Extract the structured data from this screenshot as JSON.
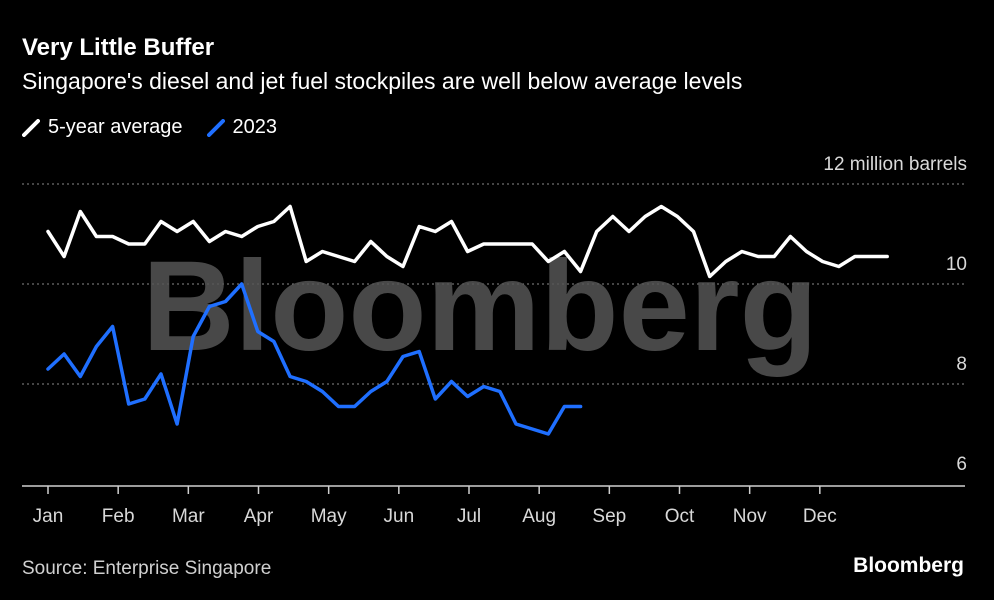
{
  "header": {
    "title": "Very Little Buffer",
    "subtitle": "Singapore's diesel and jet fuel stockpiles are well below average levels"
  },
  "legend": {
    "items": [
      {
        "label": "5-year average",
        "color": "#ffffff"
      },
      {
        "label": "2023",
        "color": "#1f6fff"
      }
    ]
  },
  "footer": {
    "source": "Source: Enterprise Singapore",
    "brand": "Bloomberg"
  },
  "watermark": "Bloomberg",
  "chart_data": {
    "type": "line",
    "y_unit_label": "12 million barrels",
    "ylim": [
      5.6,
      12
    ],
    "yticks": [
      {
        "value": 12,
        "label": "12"
      },
      {
        "value": 10,
        "label": "10"
      },
      {
        "value": 8,
        "label": "8"
      },
      {
        "value": 6,
        "label": "6"
      }
    ],
    "xlim": [
      0,
      12.2
    ],
    "xticks": [
      "Jan",
      "Feb",
      "Mar",
      "Apr",
      "May",
      "Jun",
      "Jul",
      "Aug",
      "Sep",
      "Oct",
      "Nov",
      "Dec"
    ],
    "grid": true,
    "series": [
      {
        "name": "5-year average",
        "color": "#ffffff",
        "x": [
          0.0,
          0.23,
          0.46,
          0.69,
          0.92,
          1.15,
          1.38,
          1.61,
          1.84,
          2.07,
          2.3,
          2.53,
          2.76,
          2.99,
          3.22,
          3.45,
          3.68,
          3.91,
          4.14,
          4.37,
          4.6,
          4.83,
          5.06,
          5.29,
          5.52,
          5.75,
          5.98,
          6.21,
          6.44,
          6.67,
          6.9,
          7.13,
          7.36,
          7.59,
          7.82,
          8.05,
          8.28,
          8.51,
          8.74,
          8.97,
          9.2,
          9.43,
          9.66,
          9.89,
          10.12,
          10.35,
          10.58,
          10.81,
          11.04,
          11.27,
          11.5,
          11.73,
          11.96
        ],
        "values": [
          11.05,
          10.55,
          11.45,
          10.95,
          10.95,
          10.8,
          10.8,
          11.25,
          11.05,
          11.25,
          10.85,
          11.05,
          10.95,
          11.15,
          11.25,
          11.55,
          10.45,
          10.65,
          10.55,
          10.45,
          10.85,
          10.55,
          10.35,
          11.15,
          11.05,
          11.25,
          10.65,
          10.8,
          10.8,
          10.8,
          10.8,
          10.45,
          10.65,
          10.25,
          11.05,
          11.35,
          11.05,
          11.35,
          11.55,
          11.35,
          11.05,
          10.15,
          10.45,
          10.65,
          10.55,
          10.55,
          10.95,
          10.65,
          10.45,
          10.35,
          10.55,
          10.55,
          10.55
        ]
      },
      {
        "name": "2023",
        "color": "#1f6fff",
        "x": [
          0.0,
          0.23,
          0.46,
          0.69,
          0.92,
          1.15,
          1.38,
          1.61,
          1.84,
          2.07,
          2.3,
          2.53,
          2.76,
          2.99,
          3.22,
          3.45,
          3.68,
          3.91,
          4.14,
          4.37,
          4.6,
          4.83,
          5.06,
          5.29,
          5.52,
          5.75,
          5.98,
          6.21,
          6.44,
          6.67,
          6.9,
          7.13,
          7.36,
          7.59
        ],
        "values": [
          8.3,
          8.6,
          8.15,
          8.75,
          9.15,
          7.6,
          7.7,
          8.2,
          7.2,
          8.95,
          9.55,
          9.65,
          10.0,
          9.05,
          8.85,
          8.15,
          8.05,
          7.85,
          7.55,
          7.55,
          7.85,
          8.05,
          8.55,
          8.65,
          7.7,
          8.05,
          7.75,
          7.95,
          7.85,
          7.2,
          7.1,
          7.0,
          7.55,
          7.55
        ]
      }
    ]
  }
}
